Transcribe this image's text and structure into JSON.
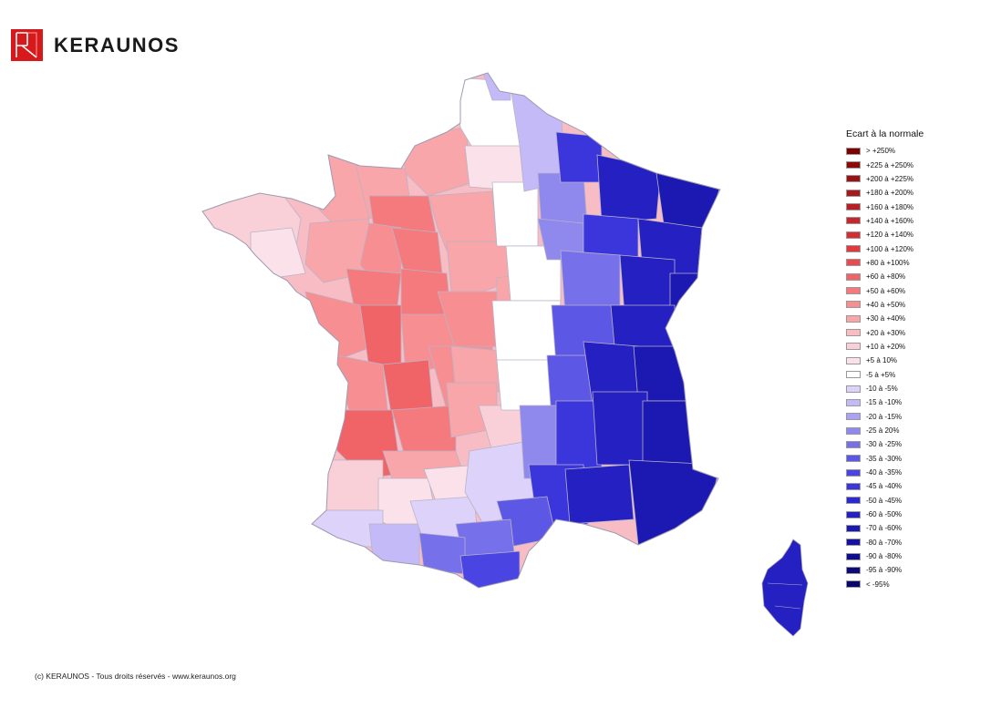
{
  "brand": {
    "name": "KERAUNOS",
    "accent": "#d7191c"
  },
  "legend": {
    "title": "Ecart à la normale",
    "items": [
      {
        "label": "> +250%",
        "color": "#7f0000"
      },
      {
        "label": "+225 à +250%",
        "color": "#8c0a0a"
      },
      {
        "label": "+200 à +225%",
        "color": "#9a1212"
      },
      {
        "label": "+180 à +200%",
        "color": "#a8181a"
      },
      {
        "label": "+160 à +180%",
        "color": "#b81f22"
      },
      {
        "label": "+140 à +160%",
        "color": "#c8262b"
      },
      {
        "label": "+120 à +140%",
        "color": "#d52d32"
      },
      {
        "label": "+100 à +120%",
        "color": "#e03a3e"
      },
      {
        "label": "+80 à +100%",
        "color": "#ea4a4e"
      },
      {
        "label": "+60 à +80%",
        "color": "#f06468"
      },
      {
        "label": "+50 à +60%",
        "color": "#f47a7e"
      },
      {
        "label": "+40 à +50%",
        "color": "#f78f92"
      },
      {
        "label": "+30 à +40%",
        "color": "#f8a6aa"
      },
      {
        "label": "+20 à +30%",
        "color": "#f8bcc4"
      },
      {
        "label": "+10 à +20%",
        "color": "#f9d0d8"
      },
      {
        "label": "+5 à 10%",
        "color": "#fbe2ea"
      },
      {
        "label": "-5 à +5%",
        "color": "#ffffff"
      },
      {
        "label": "-10 à -5%",
        "color": "#dcd2fa"
      },
      {
        "label": "-15 à -10%",
        "color": "#c3baf7"
      },
      {
        "label": "-20 à -15%",
        "color": "#aaa2f3"
      },
      {
        "label": "-25 à 20%",
        "color": "#8f89ee"
      },
      {
        "label": "-30 à -25%",
        "color": "#7670ea"
      },
      {
        "label": "-35 à -30%",
        "color": "#5d57e6"
      },
      {
        "label": "-40 à -35%",
        "color": "#4a45e2"
      },
      {
        "label": "-45 à -40%",
        "color": "#3a36dc"
      },
      {
        "label": "-50 à -45%",
        "color": "#2d29d0"
      },
      {
        "label": "-60 à -50%",
        "color": "#2420c2"
      },
      {
        "label": "-70 à -60%",
        "color": "#1c18b2"
      },
      {
        "label": "-80 à -70%",
        "color": "#15129f"
      },
      {
        "label": "-90 à -80%",
        "color": "#100d8c"
      },
      {
        "label": "-95 à -90%",
        "color": "#0c0a7a"
      },
      {
        "label": "< -95%",
        "color": "#080668"
      }
    ]
  },
  "footer": {
    "copyright": "(c) KERAUNOS - Tous droits réservés - www.keraunos.org"
  }
}
